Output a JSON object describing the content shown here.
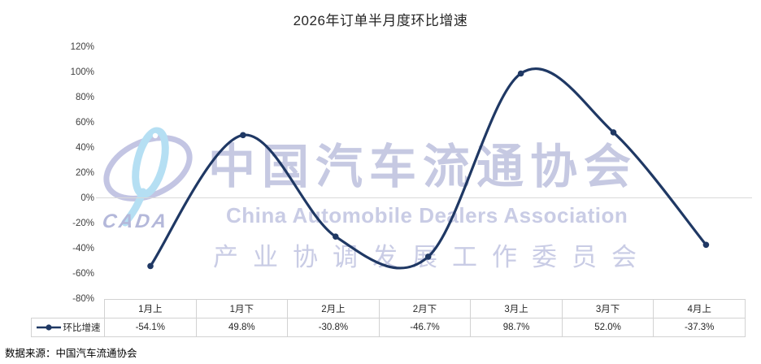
{
  "title": "2026年订单半月度环比增速",
  "footer": "数据来源：中国汽车流通协会",
  "legend": {
    "label": "环比增速"
  },
  "watermark": {
    "logo_text": "CADA",
    "line_cn": "中国汽车流通协会",
    "line_en": "China Automobile Dealers Association",
    "line_sub": "产业协调发展工作委员会"
  },
  "colors": {
    "line": "#1f3864",
    "gridline": "#d9d9d9",
    "table_border": "#d2d2d2",
    "watermark_purple": "#c6c9e2",
    "watermark_blue": "#aedcf2",
    "watermark_logo_ring": "#bdbfe0"
  },
  "y_axis": {
    "ticks": [
      "120%",
      "100%",
      "80%",
      "60%",
      "40%",
      "20%",
      "0%",
      "-20%",
      "-40%",
      "-60%",
      "-80%"
    ]
  },
  "chart_data": {
    "type": "line",
    "title": "2026年订单半月度环比增速",
    "categories": [
      "1月上",
      "1月下",
      "2月上",
      "2月下",
      "3月上",
      "3月下",
      "4月上"
    ],
    "series": [
      {
        "name": "环比增速",
        "values": [
          -54.1,
          49.8,
          -30.8,
          -46.7,
          98.7,
          52.0,
          -37.3
        ]
      }
    ],
    "value_labels": [
      "-54.1%",
      "49.8%",
      "-30.8%",
      "-46.7%",
      "98.7%",
      "52.0%",
      "-37.3%"
    ],
    "ylim": [
      -80,
      120
    ],
    "y_tick_step": 20,
    "grid": "zero-line-only",
    "smoothed": true,
    "legend_position": "table-left"
  }
}
